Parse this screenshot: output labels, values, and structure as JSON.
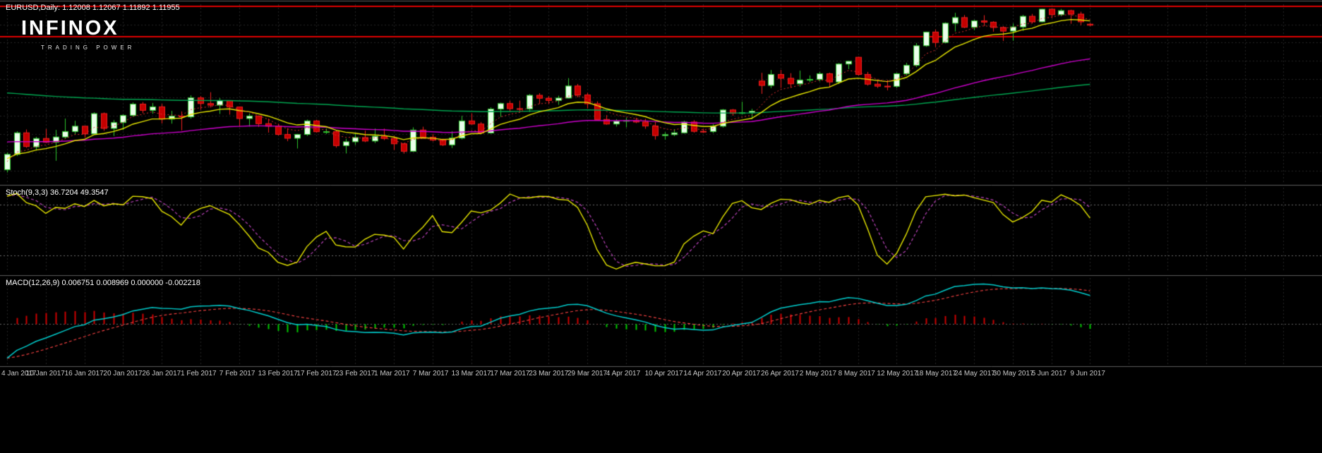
{
  "header": {
    "quote_line": "EURUSD,Daily: 1.12008 1.12067 1.11892 1.11955"
  },
  "logo": {
    "name": "INFINOX",
    "tagline": "TRADING POWER"
  },
  "indicator_labels": {
    "stochastic": "Stoch(9,3,3) 36.7204 49.3547",
    "macd": "MACD(12,26,9) 0.006751 0.008969 0.000000 -0.002218"
  },
  "axis": {
    "tick_step": 4,
    "tick_labels": [
      "4 Jan 2017",
      "10 Jan 2017",
      "16 Jan 2017",
      "20 Jan 2017",
      "26 Jan 2017",
      "1 Feb 2017",
      "7 Feb 2017",
      "13 Feb 2017",
      "17 Feb 2017",
      "23 Feb 2017",
      "1 Mar 2017",
      "7 Mar 2017",
      "13 Mar 2017",
      "17 Mar 2017",
      "23 Mar 2017",
      "29 Mar 2017",
      "4 Apr 2017",
      "10 Apr 2017",
      "14 Apr 2017",
      "20 Apr 2017",
      "26 Apr 2017",
      "2 May 2017",
      "8 May 2017",
      "12 May 2017",
      "18 May 2017",
      "24 May 2017",
      "30 May 2017",
      "5 Jun 2017",
      "9 Jun 2017"
    ]
  },
  "colors": {
    "background": "#000000",
    "bull_fill": "#eaffea",
    "bull_border": "#2cc62c",
    "bear_fill": "#c40000",
    "bear_border": "#f02020",
    "level_line": "#dd0000",
    "grid": "#262626",
    "separator": "#5c5c5c",
    "text": "#ffffff",
    "axis_text": "#c9c9c9"
  },
  "chart_data": [
    {
      "type": "candlestick",
      "title": "EURUSD,Daily",
      "symbol": "EURUSD",
      "timeframe": "Daily",
      "quote": {
        "open": 1.12008,
        "high": 1.12067,
        "low": 1.11892,
        "close": 1.11955
      },
      "ylim": [
        1.033,
        1.131
      ],
      "grid_step": 0.01,
      "levels": [
        1.1298,
        1.1133
      ],
      "moving_averages": [
        {
          "period": 5,
          "color": "#e03030",
          "style": "dotted",
          "seed": 1.043
        },
        {
          "period": 10,
          "color": "#e6e600",
          "style": "solid",
          "seed": 1.046
        },
        {
          "period": 50,
          "color": "#cc00cc",
          "style": "solid",
          "seed": 1.056
        },
        {
          "period": 130,
          "color": "#00a550",
          "style": "solid",
          "seed": 1.083
        }
      ],
      "ohlc": [
        [
          1.0405,
          1.05,
          1.039,
          1.0489
        ],
        [
          1.0489,
          1.0615,
          1.048,
          1.0607
        ],
        [
          1.0607,
          1.0625,
          1.0525,
          1.0532
        ],
        [
          1.053,
          1.0585,
          1.051,
          1.0576
        ],
        [
          1.0576,
          1.0628,
          1.0551,
          1.0555
        ],
        [
          1.0555,
          1.0623,
          1.0454,
          1.0584
        ],
        [
          1.0584,
          1.0685,
          1.0575,
          1.0614
        ],
        [
          1.0614,
          1.0673,
          1.0596,
          1.0643
        ],
        [
          1.0643,
          1.0643,
          1.058,
          1.0601
        ],
        [
          1.0601,
          1.0719,
          1.0598,
          1.0712
        ],
        [
          1.0712,
          1.0718,
          1.0618,
          1.0631
        ],
        [
          1.0631,
          1.0677,
          1.0589,
          1.0663
        ],
        [
          1.0663,
          1.0708,
          1.0622,
          1.0702
        ],
        [
          1.0702,
          1.0773,
          1.0694,
          1.0764
        ],
        [
          1.0764,
          1.0775,
          1.0714,
          1.073
        ],
        [
          1.073,
          1.077,
          1.0711,
          1.0749
        ],
        [
          1.0749,
          1.0765,
          1.0658,
          1.0682
        ],
        [
          1.0682,
          1.0727,
          1.0657,
          1.0698
        ],
        [
          1.0698,
          1.0724,
          1.062,
          1.0694
        ],
        [
          1.0694,
          1.0812,
          1.0684,
          1.0798
        ],
        [
          1.0798,
          1.0808,
          1.0733,
          1.0767
        ],
        [
          1.0767,
          1.0829,
          1.0745,
          1.0758
        ],
        [
          1.0758,
          1.0797,
          1.071,
          1.0783
        ],
        [
          1.0783,
          1.0785,
          1.0706,
          1.0748
        ],
        [
          1.0748,
          1.0749,
          1.064,
          1.0685
        ],
        [
          1.0685,
          1.0713,
          1.0641,
          1.0699
        ],
        [
          1.0699,
          1.0701,
          1.0639,
          1.0657
        ],
        [
          1.0657,
          1.0684,
          1.0608,
          1.0643
        ],
        [
          1.0643,
          1.0657,
          1.0592,
          1.0598
        ],
        [
          1.0598,
          1.0632,
          1.0561,
          1.0577
        ],
        [
          1.0577,
          1.0601,
          1.0521,
          1.0598
        ],
        [
          1.0598,
          1.0679,
          1.059,
          1.0672
        ],
        [
          1.0672,
          1.0678,
          1.0608,
          1.0613
        ],
        [
          1.0613,
          1.063,
          1.0601,
          1.0613
        ],
        [
          1.0613,
          1.062,
          1.0526,
          1.0537
        ],
        [
          1.0537,
          1.0575,
          1.0494,
          1.0558
        ],
        [
          1.0558,
          1.0607,
          1.054,
          1.0581
        ],
        [
          1.0581,
          1.0619,
          1.0556,
          1.0562
        ],
        [
          1.0562,
          1.0631,
          1.0551,
          1.0588
        ],
        [
          1.0588,
          1.063,
          1.0567,
          1.0576
        ],
        [
          1.0576,
          1.059,
          1.0513,
          1.0547
        ],
        [
          1.0547,
          1.0551,
          1.0493,
          1.0506
        ],
        [
          1.0506,
          1.0637,
          1.0503,
          1.0622
        ],
        [
          1.0622,
          1.064,
          1.0574,
          1.0583
        ],
        [
          1.0583,
          1.0601,
          1.056,
          1.0567
        ],
        [
          1.0567,
          1.0575,
          1.0535,
          1.0541
        ],
        [
          1.0541,
          1.0616,
          1.0524,
          1.0578
        ],
        [
          1.0578,
          1.07,
          1.0571,
          1.0672
        ],
        [
          1.0672,
          1.0714,
          1.0651,
          1.0655
        ],
        [
          1.0655,
          1.0666,
          1.0601,
          1.0606
        ],
        [
          1.0606,
          1.0746,
          1.0602,
          1.0737
        ],
        [
          1.0737,
          1.0772,
          1.0694,
          1.0767
        ],
        [
          1.0767,
          1.0782,
          1.072,
          1.0739
        ],
        [
          1.0739,
          1.0783,
          1.0719,
          1.0738
        ],
        [
          1.0738,
          1.0819,
          1.072,
          1.0812
        ],
        [
          1.0812,
          1.0824,
          1.0765,
          1.0796
        ],
        [
          1.0796,
          1.0808,
          1.0764,
          1.0784
        ],
        [
          1.0784,
          1.081,
          1.076,
          1.0797
        ],
        [
          1.0797,
          1.0906,
          1.0795,
          1.0863
        ],
        [
          1.0863,
          1.0874,
          1.0801,
          1.0814
        ],
        [
          1.0814,
          1.0826,
          1.074,
          1.0766
        ],
        [
          1.0766,
          1.0779,
          1.0682,
          1.068
        ],
        [
          1.068,
          1.0704,
          1.0651,
          1.0655
        ],
        [
          1.0655,
          1.0682,
          1.0641,
          1.067
        ],
        [
          1.067,
          1.069,
          1.0637,
          1.0674
        ],
        [
          1.0674,
          1.0689,
          1.066,
          1.0666
        ],
        [
          1.0666,
          1.0683,
          1.0629,
          1.0644
        ],
        [
          1.0644,
          1.0667,
          1.057,
          1.0592
        ],
        [
          1.0592,
          1.061,
          1.0569,
          1.0597
        ],
        [
          1.0597,
          1.0627,
          1.0589,
          1.0607
        ],
        [
          1.0607,
          1.0673,
          1.0603,
          1.0666
        ],
        [
          1.0666,
          1.0676,
          1.0608,
          1.0615
        ],
        [
          1.0615,
          1.0628,
          1.0606,
          1.0614
        ],
        [
          1.0614,
          1.0655,
          1.0605,
          1.0643
        ],
        [
          1.0643,
          1.0737,
          1.0636,
          1.0732
        ],
        [
          1.0732,
          1.0737,
          1.07,
          1.0713
        ],
        [
          1.0713,
          1.0777,
          1.0708,
          1.0717
        ],
        [
          1.0717,
          1.0738,
          1.0682,
          1.0725
        ],
        [
          1.089,
          1.0935,
          1.082,
          1.0866
        ],
        [
          1.0866,
          1.095,
          1.0851,
          1.0926
        ],
        [
          1.0926,
          1.0951,
          1.0852,
          1.0905
        ],
        [
          1.0905,
          1.0933,
          1.0853,
          1.0875
        ],
        [
          1.0875,
          1.0947,
          1.0859,
          1.0895
        ],
        [
          1.0895,
          1.0921,
          1.0884,
          1.0899
        ],
        [
          1.0899,
          1.094,
          1.0888,
          1.093
        ],
        [
          1.093,
          1.0936,
          1.0855,
          1.0885
        ],
        [
          1.0885,
          1.0988,
          1.0874,
          1.0983
        ],
        [
          1.0983,
          1.1,
          1.0955,
          1.0998
        ],
        [
          1.102,
          1.1023,
          1.092,
          1.0926
        ],
        [
          1.0926,
          1.094,
          1.0865,
          1.0873
        ],
        [
          1.0873,
          1.0896,
          1.0852,
          1.0862
        ],
        [
          1.0862,
          1.0896,
          1.0839,
          1.0861
        ],
        [
          1.0861,
          1.0935,
          1.0852,
          1.093
        ],
        [
          1.093,
          1.099,
          1.092,
          1.0976
        ],
        [
          1.0976,
          1.1098,
          1.0966,
          1.1083
        ],
        [
          1.1083,
          1.116,
          1.1077,
          1.1158
        ],
        [
          1.1158,
          1.1172,
          1.1076,
          1.1101
        ],
        [
          1.1101,
          1.1211,
          1.1096,
          1.1206
        ],
        [
          1.1206,
          1.1263,
          1.1161,
          1.1237
        ],
        [
          1.1237,
          1.1251,
          1.118,
          1.1184
        ],
        [
          1.1184,
          1.1225,
          1.1168,
          1.1219
        ],
        [
          1.1219,
          1.125,
          1.1191,
          1.1212
        ],
        [
          1.1212,
          1.1217,
          1.116,
          1.1183
        ],
        [
          1.1183,
          1.119,
          1.1109,
          1.1163
        ],
        [
          1.1163,
          1.1205,
          1.111,
          1.1186
        ],
        [
          1.1186,
          1.1252,
          1.1164,
          1.1244
        ],
        [
          1.1244,
          1.1257,
          1.1205,
          1.1214
        ],
        [
          1.1214,
          1.1285,
          1.1211,
          1.1283
        ],
        [
          1.1283,
          1.1285,
          1.1235,
          1.1253
        ],
        [
          1.1253,
          1.1284,
          1.1244,
          1.1275
        ],
        [
          1.1275,
          1.128,
          1.1203,
          1.1256
        ],
        [
          1.1256,
          1.1269,
          1.1195,
          1.1214
        ],
        [
          1.12008,
          1.12067,
          1.11892,
          1.11955
        ]
      ]
    },
    {
      "type": "line",
      "name": "Stochastic",
      "params": [
        9,
        3,
        3
      ],
      "current": {
        "main": 36.7204,
        "signal": 49.3547
      },
      "ylim": [
        0,
        100
      ],
      "levels": [
        20,
        80
      ],
      "main_color": "#e6e600",
      "signal_color": "#bb44bb",
      "derived_from": "chart_data[0].ohlc"
    },
    {
      "type": "macd",
      "params": [
        12,
        26,
        9
      ],
      "current": {
        "macd": 0.006751,
        "signal": 0.008969,
        "zero": 0.0,
        "histogram": -0.002218
      },
      "macd_color": "#00cccc",
      "signal_color": "#ff4444",
      "hist_up_color": "#cc0000",
      "hist_down_color": "#00c800",
      "ema_seeds": {
        "fast": 1.041,
        "slow": 1.052
      },
      "derived_from": "chart_data[0].ohlc"
    }
  ]
}
